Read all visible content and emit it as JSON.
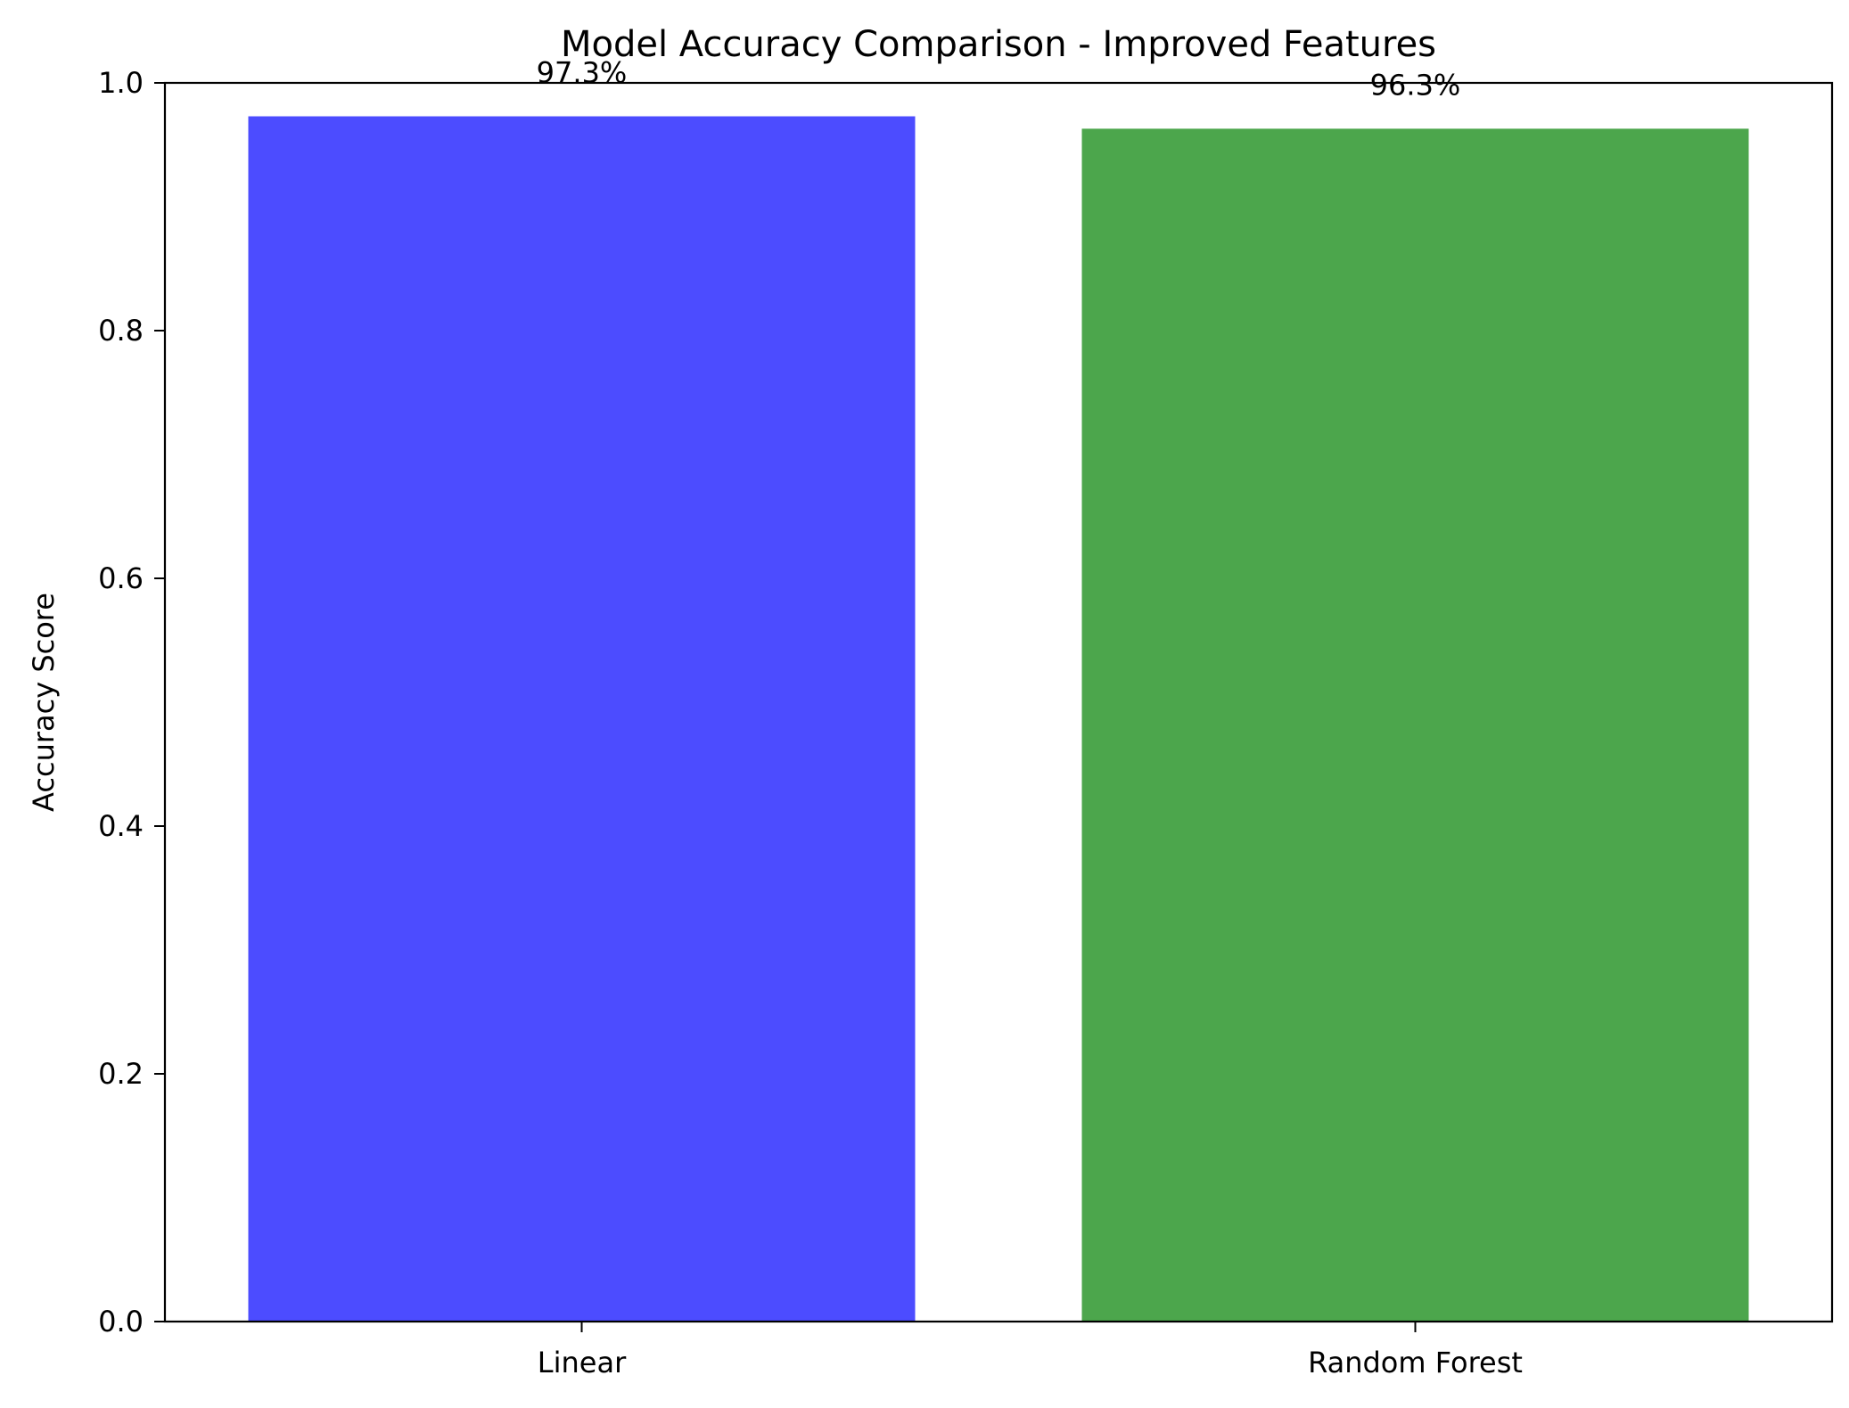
{
  "chart_data": {
    "type": "bar",
    "title": "Model Accuracy Comparison - Improved Features",
    "xlabel": "",
    "ylabel": "Accuracy Score",
    "categories": [
      "Linear",
      "Random Forest"
    ],
    "values": [
      0.973,
      0.963
    ],
    "data_labels": [
      "97.3%",
      "96.3%"
    ],
    "colors": [
      "#4c4cff",
      "#4ca64c"
    ],
    "ylim": [
      0,
      1.0
    ],
    "yticks": [
      {
        "value": 0.0,
        "label": "0.0"
      },
      {
        "value": 0.2,
        "label": "0.2"
      },
      {
        "value": 0.4,
        "label": "0.4"
      },
      {
        "value": 0.6,
        "label": "0.6"
      },
      {
        "value": 0.8,
        "label": "0.8"
      },
      {
        "value": 1.0,
        "label": "1.0"
      }
    ],
    "grid": false,
    "legend": "none"
  }
}
